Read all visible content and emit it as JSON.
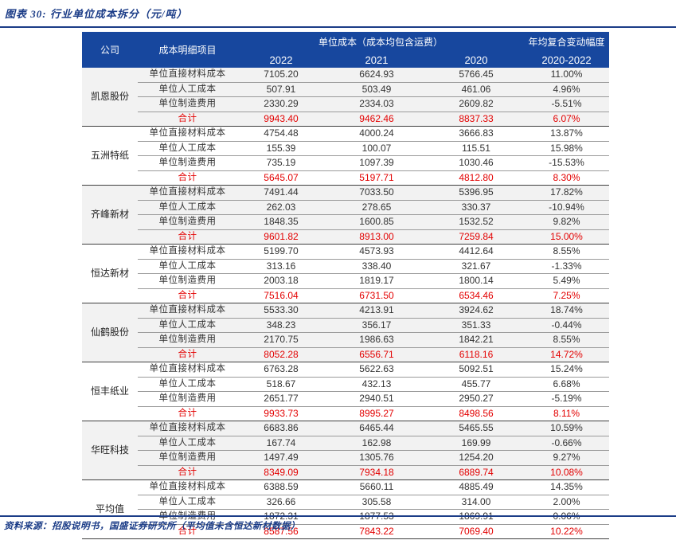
{
  "page": {
    "title": "图表 30: 行业单位成本拆分（元/吨）",
    "source": "资料来源：招股说明书，国盛证券研究所（平均值未含恒达新材数据）"
  },
  "colors": {
    "header_bg": "#17479E",
    "rule_blue": "#1B3C87",
    "title_text": "#1B3C87",
    "total_red": "#E30000",
    "band_bg": "#F2F2F2",
    "body_text": "#333333"
  },
  "table": {
    "header": {
      "company": "公司",
      "item": "成本明细项目",
      "cost_group": "单位成本（成本均包含运费）",
      "cagr_group": "年均复合变动幅度",
      "years": [
        "2022",
        "2021",
        "2020"
      ],
      "cagr_col": "2020-2022"
    },
    "companies": [
      {
        "name": "凯恩股份",
        "rows": [
          {
            "label": "单位直接材料成本",
            "y2022": "7105.20",
            "y2021": "6624.93",
            "y2020": "5766.45",
            "cagr": "11.00%"
          },
          {
            "label": "单位人工成本",
            "y2022": "507.91",
            "y2021": "503.49",
            "y2020": "461.06",
            "cagr": "4.96%"
          },
          {
            "label": "单位制造费用",
            "y2022": "2330.29",
            "y2021": "2334.03",
            "y2020": "2609.82",
            "cagr": "-5.51%"
          },
          {
            "label": "合计",
            "y2022": "9943.40",
            "y2021": "9462.46",
            "y2020": "8837.33",
            "cagr": "6.07%"
          }
        ]
      },
      {
        "name": "五洲特纸",
        "rows": [
          {
            "label": "单位直接材料成本",
            "y2022": "4754.48",
            "y2021": "4000.24",
            "y2020": "3666.83",
            "cagr": "13.87%"
          },
          {
            "label": "单位人工成本",
            "y2022": "155.39",
            "y2021": "100.07",
            "y2020": "115.51",
            "cagr": "15.98%"
          },
          {
            "label": "单位制造费用",
            "y2022": "735.19",
            "y2021": "1097.39",
            "y2020": "1030.46",
            "cagr": "-15.53%"
          },
          {
            "label": "合计",
            "y2022": "5645.07",
            "y2021": "5197.71",
            "y2020": "4812.80",
            "cagr": "8.30%"
          }
        ]
      },
      {
        "name": "齐峰新材",
        "rows": [
          {
            "label": "单位直接材料成本",
            "y2022": "7491.44",
            "y2021": "7033.50",
            "y2020": "5396.95",
            "cagr": "17.82%"
          },
          {
            "label": "单位人工成本",
            "y2022": "262.03",
            "y2021": "278.65",
            "y2020": "330.37",
            "cagr": "-10.94%"
          },
          {
            "label": "单位制造费用",
            "y2022": "1848.35",
            "y2021": "1600.85",
            "y2020": "1532.52",
            "cagr": "9.82%"
          },
          {
            "label": "合计",
            "y2022": "9601.82",
            "y2021": "8913.00",
            "y2020": "7259.84",
            "cagr": "15.00%"
          }
        ]
      },
      {
        "name": "恒达新材",
        "rows": [
          {
            "label": "单位直接材料成本",
            "y2022": "5199.70",
            "y2021": "4573.93",
            "y2020": "4412.64",
            "cagr": "8.55%"
          },
          {
            "label": "单位人工成本",
            "y2022": "313.16",
            "y2021": "338.40",
            "y2020": "321.67",
            "cagr": "-1.33%"
          },
          {
            "label": "单位制造费用",
            "y2022": "2003.18",
            "y2021": "1819.17",
            "y2020": "1800.14",
            "cagr": "5.49%"
          },
          {
            "label": "合计",
            "y2022": "7516.04",
            "y2021": "6731.50",
            "y2020": "6534.46",
            "cagr": "7.25%"
          }
        ]
      },
      {
        "name": "仙鹤股份",
        "rows": [
          {
            "label": "单位直接材料成本",
            "y2022": "5533.30",
            "y2021": "4213.91",
            "y2020": "3924.62",
            "cagr": "18.74%"
          },
          {
            "label": "单位人工成本",
            "y2022": "348.23",
            "y2021": "356.17",
            "y2020": "351.33",
            "cagr": "-0.44%"
          },
          {
            "label": "单位制造费用",
            "y2022": "2170.75",
            "y2021": "1986.63",
            "y2020": "1842.21",
            "cagr": "8.55%"
          },
          {
            "label": "合计",
            "y2022": "8052.28",
            "y2021": "6556.71",
            "y2020": "6118.16",
            "cagr": "14.72%"
          }
        ]
      },
      {
        "name": "恒丰纸业",
        "rows": [
          {
            "label": "单位直接材料成本",
            "y2022": "6763.28",
            "y2021": "5622.63",
            "y2020": "5092.51",
            "cagr": "15.24%"
          },
          {
            "label": "单位人工成本",
            "y2022": "518.67",
            "y2021": "432.13",
            "y2020": "455.77",
            "cagr": "6.68%"
          },
          {
            "label": "单位制造费用",
            "y2022": "2651.77",
            "y2021": "2940.51",
            "y2020": "2950.27",
            "cagr": "-5.19%"
          },
          {
            "label": "合计",
            "y2022": "9933.73",
            "y2021": "8995.27",
            "y2020": "8498.56",
            "cagr": "8.11%"
          }
        ]
      },
      {
        "name": "华旺科技",
        "rows": [
          {
            "label": "单位直接材料成本",
            "y2022": "6683.86",
            "y2021": "6465.44",
            "y2020": "5465.55",
            "cagr": "10.59%"
          },
          {
            "label": "单位人工成本",
            "y2022": "167.74",
            "y2021": "162.98",
            "y2020": "169.99",
            "cagr": "-0.66%"
          },
          {
            "label": "单位制造费用",
            "y2022": "1497.49",
            "y2021": "1305.76",
            "y2020": "1254.20",
            "cagr": "9.27%"
          },
          {
            "label": "合计",
            "y2022": "8349.09",
            "y2021": "7934.18",
            "y2020": "6889.74",
            "cagr": "10.08%"
          }
        ]
      },
      {
        "name": "平均值",
        "rows": [
          {
            "label": "单位直接材料成本",
            "y2022": "6388.59",
            "y2021": "5660.11",
            "y2020": "4885.49",
            "cagr": "14.35%"
          },
          {
            "label": "单位人工成本",
            "y2022": "326.66",
            "y2021": "305.58",
            "y2020": "314.00",
            "cagr": "2.00%"
          },
          {
            "label": "单位制造费用",
            "y2022": "1872.31",
            "y2021": "1877.53",
            "y2020": "1869.91",
            "cagr": "0.06%"
          },
          {
            "label": "合计",
            "y2022": "8587.56",
            "y2021": "7843.22",
            "y2020": "7069.40",
            "cagr": "10.22%"
          }
        ]
      }
    ]
  }
}
